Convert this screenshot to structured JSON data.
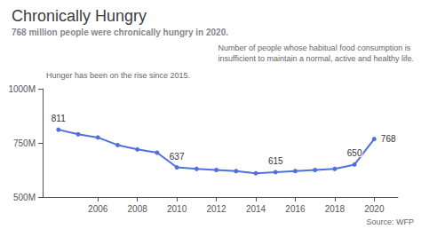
{
  "chart_data": {
    "type": "line",
    "title": "Chronically Hungry",
    "subtitle": "768 million people were chronically hungry in 2020.",
    "x": [
      2004,
      2005,
      2006,
      2007,
      2008,
      2009,
      2010,
      2011,
      2012,
      2013,
      2014,
      2015,
      2016,
      2017,
      2018,
      2019,
      2020
    ],
    "values": [
      811,
      790,
      775,
      740,
      720,
      705,
      637,
      630,
      625,
      620,
      610,
      615,
      620,
      625,
      630,
      650,
      768
    ],
    "value_labels": [
      "811",
      null,
      null,
      null,
      null,
      null,
      "637",
      null,
      null,
      null,
      null,
      "615",
      null,
      null,
      null,
      "650",
      "768"
    ],
    "xlim": [
      2003.2,
      2021.2
    ],
    "xticks": [
      2006,
      2008,
      2010,
      2012,
      2014,
      2016,
      2018,
      2020
    ],
    "ylim": [
      500,
      1000
    ],
    "yticks": [
      {
        "value": 500,
        "label": "500M"
      },
      {
        "value": 750,
        "label": "750M"
      },
      {
        "value": 1000,
        "label": "1000M"
      }
    ],
    "grid": false,
    "annotations": [
      "Number of people whose habitual food consumption is\ninsufficient to maintain a normal, active and healthy life.",
      "Hunger has been on the rise since 2015."
    ],
    "source": "Source: WFP"
  }
}
